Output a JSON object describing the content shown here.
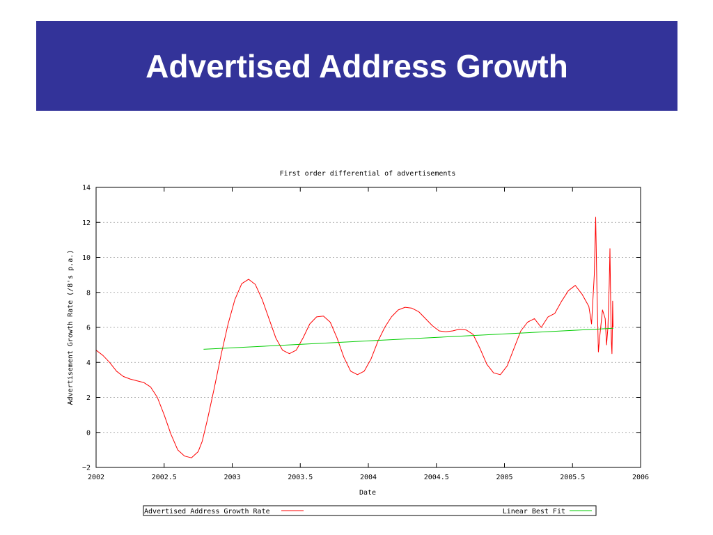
{
  "slide": {
    "title": "Advertised Address Growth"
  },
  "colors": {
    "banner": "#333399",
    "growth_line": "#ff0000",
    "fit_line": "#00cc00",
    "grid": "#999999"
  },
  "chart_data": {
    "type": "line",
    "title": "First order differential of advertisements",
    "xlabel": "Date",
    "ylabel": "Advertisement Growth Rate (/8's p.a.)",
    "xlim": [
      2002,
      2006
    ],
    "ylim": [
      -2,
      14
    ],
    "xticks": [
      "2002",
      "2002.5",
      "2003",
      "2003.5",
      "2004",
      "2004.5",
      "2005",
      "2005.5",
      "2006"
    ],
    "yticks": [
      "−2",
      "0",
      "2",
      "4",
      "6",
      "8",
      "10",
      "12",
      "14"
    ],
    "grid": true,
    "legend_position": "bottom",
    "series": [
      {
        "name": "Advertised Address Growth Rate",
        "color": "#ff0000",
        "x": [
          2002.0,
          2002.05,
          2002.1,
          2002.15,
          2002.2,
          2002.25,
          2002.3,
          2002.35,
          2002.4,
          2002.45,
          2002.5,
          2002.55,
          2002.6,
          2002.65,
          2002.7,
          2002.75,
          2002.78,
          2002.82,
          2002.87,
          2002.92,
          2002.97,
          2003.02,
          2003.07,
          2003.12,
          2003.17,
          2003.22,
          2003.27,
          2003.32,
          2003.37,
          2003.42,
          2003.47,
          2003.52,
          2003.57,
          2003.62,
          2003.67,
          2003.72,
          2003.77,
          2003.82,
          2003.87,
          2003.92,
          2003.97,
          2004.02,
          2004.07,
          2004.12,
          2004.17,
          2004.22,
          2004.27,
          2004.32,
          2004.37,
          2004.42,
          2004.47,
          2004.52,
          2004.57,
          2004.62,
          2004.67,
          2004.72,
          2004.77,
          2004.82,
          2004.87,
          2004.92,
          2004.97,
          2005.02,
          2005.07,
          2005.12,
          2005.17,
          2005.22,
          2005.27,
          2005.32,
          2005.37,
          2005.42,
          2005.47,
          2005.52,
          2005.57,
          2005.62,
          2005.64,
          2005.66,
          2005.67,
          2005.68,
          2005.69,
          2005.7,
          2005.72,
          2005.74,
          2005.75,
          2005.76,
          2005.77,
          2005.775,
          2005.78,
          2005.785,
          2005.79,
          2005.792,
          2005.795,
          2005.798
        ],
        "values": [
          4.7,
          4.4,
          4.0,
          3.5,
          3.2,
          3.05,
          2.95,
          2.85,
          2.6,
          2.0,
          1.0,
          -0.1,
          -1.0,
          -1.35,
          -1.45,
          -1.1,
          -0.5,
          0.8,
          2.6,
          4.5,
          6.2,
          7.6,
          8.5,
          8.75,
          8.45,
          7.6,
          6.5,
          5.4,
          4.7,
          4.5,
          4.7,
          5.4,
          6.2,
          6.6,
          6.65,
          6.3,
          5.4,
          4.3,
          3.5,
          3.3,
          3.5,
          4.2,
          5.2,
          6.0,
          6.6,
          7.0,
          7.15,
          7.1,
          6.9,
          6.5,
          6.1,
          5.8,
          5.75,
          5.8,
          5.9,
          5.85,
          5.6,
          4.8,
          3.9,
          3.4,
          3.3,
          3.8,
          4.8,
          5.8,
          6.3,
          6.5,
          6.0,
          6.6,
          6.8,
          7.5,
          8.1,
          8.4,
          7.9,
          7.2,
          6.2,
          9.0,
          12.3,
          8.0,
          4.6,
          5.5,
          7.0,
          6.5,
          5.0,
          6.0,
          8.5,
          10.5,
          7.5,
          5.2,
          4.5,
          5.5,
          7.5,
          6.0
        ],
        "_comment_dont_render": "values transcribed from the plot"
      },
      {
        "name": "Linear Best Fit",
        "color": "#00cc00",
        "x": [
          2002.79,
          2005.8
        ],
        "values": [
          4.75,
          5.95
        ]
      }
    ]
  }
}
